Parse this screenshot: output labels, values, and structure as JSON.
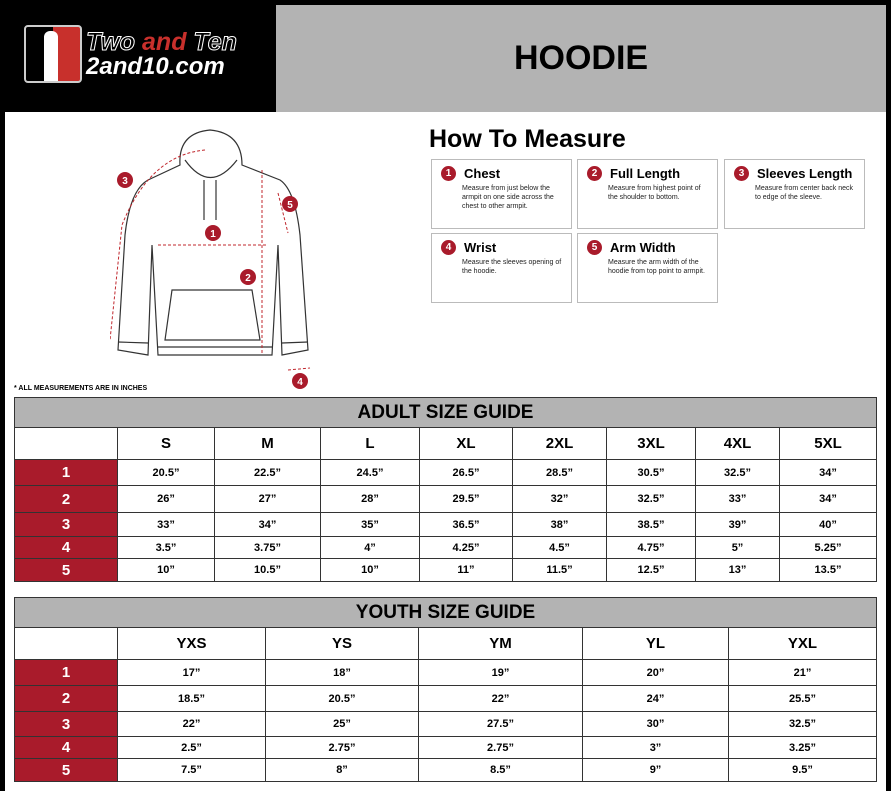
{
  "brand": {
    "line1a": "Two",
    "line1b": "and",
    "line1c": "Ten",
    "line2": "2and10.com",
    "accent": "#c8302c"
  },
  "title": "HOODIE",
  "how_to": {
    "heading": "How To Measure",
    "items": [
      {
        "n": "1",
        "title": "Chest",
        "desc": "Measure from just below the armpit on one side across the chest to other armpit."
      },
      {
        "n": "2",
        "title": "Full Length",
        "desc": "Measure from highest point of the shoulder to bottom."
      },
      {
        "n": "3",
        "title": "Sleeves Length",
        "desc": "Measure from center back neck to edge of the sleeve."
      },
      {
        "n": "4",
        "title": "Wrist",
        "desc": "Measure the sleeves opening of the hoodie."
      },
      {
        "n": "5",
        "title": "Arm Width",
        "desc": "Measure the arm width of the hoodie from top point to armpit."
      }
    ]
  },
  "note": "* ALL MEASUREMENTS ARE IN INCHES",
  "adult": {
    "title": "ADULT SIZE GUIDE",
    "sizes": [
      "S",
      "M",
      "L",
      "XL",
      "2XL",
      "3XL",
      "4XL",
      "5XL"
    ],
    "rows": [
      {
        "label": "1",
        "values": [
          "20.5”",
          "22.5”",
          "24.5”",
          "26.5”",
          "28.5”",
          "30.5”",
          "32.5”",
          "34”"
        ]
      },
      {
        "label": "2",
        "values": [
          "26”",
          "27”",
          "28”",
          "29.5”",
          "32”",
          "32.5”",
          "33”",
          "34”"
        ]
      },
      {
        "label": "3",
        "values": [
          "33”",
          "34”",
          "35”",
          "36.5”",
          "38”",
          "38.5”",
          "39”",
          "40”"
        ]
      },
      {
        "label": "4",
        "values": [
          "3.5”",
          "3.75”",
          "4”",
          "4.25”",
          "4.5”",
          "4.75”",
          "5”",
          "5.25”"
        ]
      },
      {
        "label": "5",
        "values": [
          "10”",
          "10.5”",
          "10”",
          "11”",
          "11.5”",
          "12.5”",
          "13”",
          "13.5”"
        ]
      }
    ]
  },
  "youth": {
    "title": "YOUTH SIZE GUIDE",
    "sizes": [
      "YXS",
      "YS",
      "YM",
      "YL",
      "YXL"
    ],
    "rows": [
      {
        "label": "1",
        "values": [
          "17”",
          "18”",
          "19”",
          "20”",
          "21”"
        ]
      },
      {
        "label": "2",
        "values": [
          "18.5”",
          "20.5”",
          "22”",
          "24”",
          "25.5”"
        ]
      },
      {
        "label": "3",
        "values": [
          "22”",
          "25”",
          "27.5”",
          "30”",
          "32.5”"
        ]
      },
      {
        "label": "4",
        "values": [
          "2.5”",
          "2.75”",
          "2.75”",
          "3”",
          "3.25”"
        ]
      },
      {
        "label": "5",
        "values": [
          "7.5”",
          "8”",
          "8.5”",
          "9”",
          "9.5”"
        ]
      }
    ]
  },
  "diagram_labels": [
    "1",
    "2",
    "3",
    "4",
    "5"
  ],
  "colors": {
    "row_label": "#a91b2b",
    "header_gray": "#b3b3b3"
  }
}
